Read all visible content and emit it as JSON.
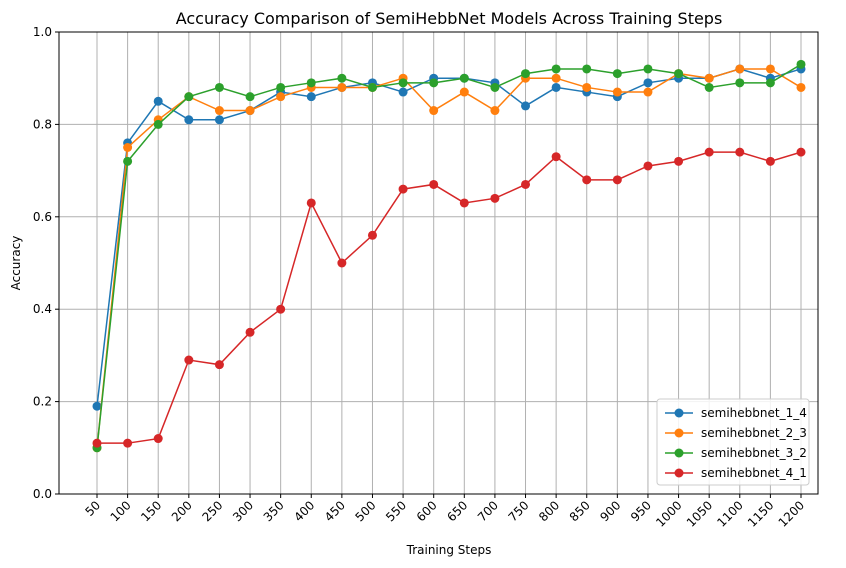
{
  "chart_data": {
    "type": "line",
    "title": "Accuracy Comparison of SemiHebbNet Models Across Training Steps",
    "xlabel": "Training Steps",
    "ylabel": "Accuracy",
    "x": [
      50,
      100,
      150,
      200,
      250,
      300,
      350,
      400,
      450,
      500,
      550,
      600,
      650,
      700,
      750,
      800,
      850,
      900,
      950,
      1000,
      1050,
      1100,
      1150,
      1200
    ],
    "ylim": [
      0.0,
      1.0
    ],
    "yticks": [
      "0.0",
      "0.2",
      "0.4",
      "0.6",
      "0.8",
      "1.0"
    ],
    "xticks": [
      "50",
      "100",
      "150",
      "200",
      "250",
      "300",
      "350",
      "400",
      "450",
      "500",
      "550",
      "600",
      "650",
      "700",
      "750",
      "800",
      "850",
      "900",
      "950",
      "1000",
      "1050",
      "1100",
      "1150",
      "1200"
    ],
    "grid": true,
    "legend_position": "lower-right",
    "series": [
      {
        "name": "semihebbnet_1_4",
        "color": "#1f77b4",
        "values": [
          0.19,
          0.76,
          0.85,
          0.81,
          0.81,
          0.83,
          0.87,
          0.86,
          0.88,
          0.89,
          0.87,
          0.9,
          0.9,
          0.89,
          0.84,
          0.88,
          0.87,
          0.86,
          0.89,
          0.9,
          0.9,
          0.92,
          0.9,
          0.92
        ]
      },
      {
        "name": "semihebbnet_2_3",
        "color": "#ff7f0e",
        "values": [
          0.1,
          0.75,
          0.81,
          0.86,
          0.83,
          0.83,
          0.86,
          0.88,
          0.88,
          0.88,
          0.9,
          0.83,
          0.87,
          0.83,
          0.9,
          0.9,
          0.88,
          0.87,
          0.87,
          0.91,
          0.9,
          0.92,
          0.92,
          0.88
        ]
      },
      {
        "name": "semihebbnet_3_2",
        "color": "#2ca02c",
        "values": [
          0.1,
          0.72,
          0.8,
          0.86,
          0.88,
          0.86,
          0.88,
          0.89,
          0.9,
          0.88,
          0.89,
          0.89,
          0.9,
          0.88,
          0.91,
          0.92,
          0.92,
          0.91,
          0.92,
          0.91,
          0.88,
          0.89,
          0.89,
          0.93
        ]
      },
      {
        "name": "semihebbnet_4_1",
        "color": "#d62728",
        "values": [
          0.11,
          0.11,
          0.12,
          0.29,
          0.28,
          0.35,
          0.4,
          0.63,
          0.5,
          0.56,
          0.66,
          0.67,
          0.63,
          0.64,
          0.67,
          0.73,
          0.68,
          0.68,
          0.71,
          0.72,
          0.74,
          0.74,
          0.72,
          0.74
        ]
      }
    ]
  }
}
